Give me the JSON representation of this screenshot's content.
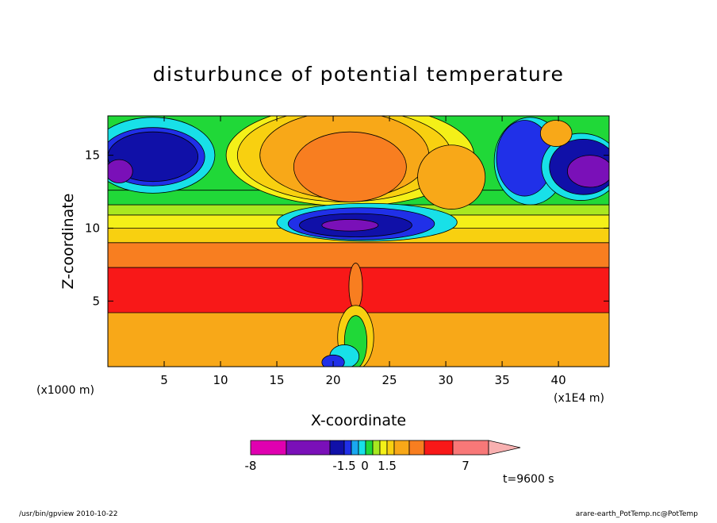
{
  "chart_data": {
    "type": "heatmap",
    "title": "disturbunce of potential temperature",
    "xlabel": "X-coordinate",
    "ylabel": "Z-coordinate",
    "x_unit": "(x1E4 m)",
    "y_unit": "(x1000 m)",
    "xlim": [
      0,
      44.5
    ],
    "ylim": [
      0.5,
      17.7
    ],
    "x_ticks": [
      5,
      10,
      15,
      20,
      25,
      30,
      35,
      40
    ],
    "y_ticks": [
      5,
      10,
      15
    ],
    "time_label": "t=9600 s",
    "colorbar": {
      "colors": [
        "#e000b0",
        "#7a10b8",
        "#1010a8",
        "#2030e8",
        "#1aa8f0",
        "#18e0e8",
        "#20d838",
        "#a8e820",
        "#f4f018",
        "#f8d010",
        "#f8a818",
        "#f87e20",
        "#f81818",
        "#f87878",
        "#f8b0b0"
      ],
      "tick_labels": [
        "-8",
        "-1.5",
        "0",
        "1.5",
        "7"
      ]
    },
    "layers": [
      {
        "z": 0.5,
        "color": "#f8a818"
      },
      {
        "z": 4.2,
        "color": "#f81818"
      },
      {
        "z": 7.3,
        "color": "#f87e20"
      },
      {
        "z": 9.0,
        "color": "#f8d010"
      },
      {
        "z": 10.0,
        "color": "#f4f018"
      },
      {
        "z": 10.9,
        "color": "#a8e820"
      },
      {
        "z": 11.6,
        "color": "#20d838"
      },
      {
        "z": 12.6,
        "color": "#20d838"
      },
      {
        "z": 17.7,
        "color": "#20d838"
      }
    ],
    "anomalies": [
      {
        "x": 4.0,
        "z": 15.0,
        "rx": 5.5,
        "rz": 2.6,
        "color": "#18e0e8"
      },
      {
        "x": 4.0,
        "z": 14.9,
        "rx": 4.6,
        "rz": 2.0,
        "color": "#2030e8"
      },
      {
        "x": 4.0,
        "z": 14.9,
        "rx": 4.0,
        "rz": 1.7,
        "color": "#1010a8"
      },
      {
        "x": 1.0,
        "z": 13.9,
        "rx": 1.2,
        "rz": 0.8,
        "color": "#7a10b8"
      },
      {
        "x": 21.5,
        "z": 15.0,
        "rx": 11.0,
        "rz": 3.5,
        "color": "#f4f018"
      },
      {
        "x": 21.0,
        "z": 15.0,
        "rx": 9.5,
        "rz": 3.2,
        "color": "#f8d010"
      },
      {
        "x": 21.0,
        "z": 15.0,
        "rx": 7.5,
        "rz": 3.0,
        "color": "#f8a818"
      },
      {
        "x": 21.5,
        "z": 14.2,
        "rx": 5.0,
        "rz": 2.4,
        "color": "#f87e20"
      },
      {
        "x": 30.5,
        "z": 13.5,
        "rx": 3.0,
        "rz": 2.2,
        "color": "#f8a818"
      },
      {
        "x": 23.0,
        "z": 10.4,
        "rx": 8.0,
        "rz": 1.3,
        "color": "#18e0e8"
      },
      {
        "x": 22.5,
        "z": 10.3,
        "rx": 6.5,
        "rz": 1.1,
        "color": "#2030e8"
      },
      {
        "x": 22.0,
        "z": 10.2,
        "rx": 5.0,
        "rz": 0.8,
        "color": "#1010a8"
      },
      {
        "x": 21.5,
        "z": 10.2,
        "rx": 2.5,
        "rz": 0.4,
        "color": "#7a10b8"
      },
      {
        "x": 37.5,
        "z": 14.6,
        "rx": 3.2,
        "rz": 3.0,
        "color": "#18e0e8"
      },
      {
        "x": 37.0,
        "z": 14.8,
        "rx": 2.5,
        "rz": 2.6,
        "color": "#2030e8"
      },
      {
        "x": 42.0,
        "z": 14.2,
        "rx": 3.5,
        "rz": 2.3,
        "color": "#18e0e8"
      },
      {
        "x": 42.2,
        "z": 14.2,
        "rx": 3.0,
        "rz": 1.9,
        "color": "#1010a8"
      },
      {
        "x": 42.8,
        "z": 13.9,
        "rx": 2.0,
        "rz": 1.1,
        "color": "#7a10b8"
      },
      {
        "x": 39.8,
        "z": 16.5,
        "rx": 1.4,
        "rz": 0.9,
        "color": "#f8a818"
      },
      {
        "x": 22.0,
        "z": 6.0,
        "rx": 0.6,
        "rz": 1.6,
        "color": "#f87e20"
      },
      {
        "x": 22.0,
        "z": 2.5,
        "rx": 1.6,
        "rz": 2.2,
        "color": "#f8d010"
      },
      {
        "x": 22.0,
        "z": 2.2,
        "rx": 1.0,
        "rz": 1.8,
        "color": "#20d838"
      },
      {
        "x": 21.0,
        "z": 1.2,
        "rx": 1.3,
        "rz": 0.8,
        "color": "#18e0e8"
      },
      {
        "x": 20.0,
        "z": 0.8,
        "rx": 1.0,
        "rz": 0.5,
        "color": "#2030e8"
      }
    ]
  },
  "footer": {
    "left": "/usr/bin/gpview   2010-10-22",
    "right": "arare-earth_PotTemp.nc@PotTemp"
  }
}
